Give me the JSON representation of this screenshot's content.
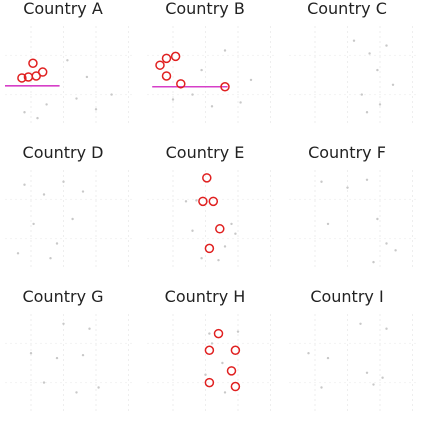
{
  "chart_data": [
    {
      "type": "scatter",
      "title": "Country A",
      "xlim": [
        0,
        10
      ],
      "ylim": [
        0,
        10
      ],
      "series": [
        {
          "color": "#c8c8c8",
          "x": [
            1.5,
            3.2,
            5.5,
            7.0,
            8.2,
            6.3,
            2.5,
            4.8
          ],
          "values": [
            1.2,
            2.0,
            2.6,
            1.5,
            3.0,
            4.8,
            0.6,
            6.5
          ]
        },
        {
          "color": "#e02020",
          "x": [
            2.15,
            1.3,
            1.8,
            2.4,
            2.9
          ],
          "values": [
            6.2,
            4.7,
            4.8,
            4.9,
            5.3
          ]
        }
      ],
      "hline": {
        "value": 3.9,
        "x": [
          0,
          4.2
        ],
        "color": "#d63fc8"
      }
    },
    {
      "type": "scatter",
      "title": "Country B",
      "xlim": [
        0,
        10
      ],
      "ylim": [
        0,
        10
      ],
      "series": [
        {
          "color": "#c8c8c8",
          "x": [
            2.0,
            3.5,
            5.0,
            7.2,
            8.0,
            4.2,
            6.0
          ],
          "values": [
            2.5,
            3.0,
            1.8,
            2.2,
            4.5,
            5.5,
            7.5
          ]
        },
        {
          "color": "#e02020",
          "x": [
            1.0,
            1.5,
            2.2,
            1.5,
            2.6,
            6.0
          ],
          "values": [
            6.0,
            6.7,
            6.9,
            4.9,
            4.1,
            3.8
          ]
        }
      ],
      "hline": {
        "value": 3.8,
        "x": [
          0.4,
          6.2
        ],
        "color": "#d63fc8"
      }
    },
    {
      "type": "scatter",
      "title": "Country C",
      "xlim": [
        0,
        10
      ],
      "ylim": [
        0,
        10
      ],
      "series": [
        {
          "color": "#c8c8c8",
          "x": [
            5.0,
            6.2,
            7.5,
            6.8,
            8.0,
            5.6,
            7.0,
            6.0
          ],
          "values": [
            8.5,
            7.2,
            8.0,
            5.5,
            4.0,
            3.0,
            2.0,
            1.2
          ]
        }
      ]
    },
    {
      "type": "scatter",
      "title": "Country D",
      "xlim": [
        0,
        10
      ],
      "ylim": [
        0,
        10
      ],
      "series": [
        {
          "color": "#c8c8c8",
          "x": [
            1.5,
            3.0,
            4.5,
            6.0,
            5.2,
            2.2,
            4.0,
            3.5,
            1.0
          ],
          "values": [
            8.5,
            7.5,
            8.8,
            7.8,
            5.0,
            4.5,
            2.5,
            1.0,
            1.5
          ]
        }
      ]
    },
    {
      "type": "scatter",
      "title": "Country E",
      "xlim": [
        0,
        10
      ],
      "ylim": [
        0,
        10
      ],
      "series": [
        {
          "color": "#c8c8c8",
          "x": [
            3.0,
            3.8,
            6.5,
            6.8,
            3.5,
            6.0,
            4.2,
            5.5
          ],
          "values": [
            6.8,
            6.9,
            4.5,
            3.5,
            3.8,
            2.2,
            1.0,
            0.8
          ]
        },
        {
          "color": "#e02020",
          "x": [
            4.6,
            4.3,
            5.1,
            5.6,
            4.8
          ],
          "values": [
            9.2,
            6.8,
            6.8,
            4.0,
            2.0
          ]
        }
      ]
    },
    {
      "type": "scatter",
      "title": "Country F",
      "xlim": [
        0,
        10
      ],
      "ylim": [
        0,
        10
      ],
      "series": [
        {
          "color": "#c8c8c8",
          "x": [
            2.5,
            4.5,
            6.0,
            3.0,
            6.8,
            7.5,
            8.2,
            6.5
          ],
          "values": [
            8.8,
            8.2,
            9.0,
            4.5,
            5.0,
            2.5,
            1.8,
            0.6
          ]
        }
      ]
    },
    {
      "type": "scatter",
      "title": "Country G",
      "xlim": [
        0,
        10
      ],
      "ylim": [
        0,
        10
      ],
      "series": [
        {
          "color": "#c8c8c8",
          "x": [
            4.5,
            6.5,
            2.0,
            4.0,
            6.0,
            3.0,
            5.5,
            7.2
          ],
          "values": [
            9.0,
            8.5,
            6.0,
            5.5,
            5.8,
            3.0,
            2.0,
            2.5
          ]
        }
      ]
    },
    {
      "type": "scatter",
      "title": "Country H",
      "xlim": [
        0,
        10
      ],
      "ylim": [
        0,
        10
      ],
      "series": [
        {
          "color": "#c8c8c8",
          "x": [
            4.8,
            5.0,
            7.0,
            5.8,
            4.5,
            6.0
          ],
          "values": [
            8.0,
            7.0,
            8.2,
            5.0,
            3.8,
            2.0
          ]
        },
        {
          "color": "#e02020",
          "x": [
            5.5,
            4.8,
            6.8,
            6.5,
            4.8,
            6.8
          ],
          "values": [
            8.0,
            6.3,
            6.3,
            4.2,
            3.0,
            2.6
          ]
        }
      ]
    },
    {
      "type": "scatter",
      "title": "Country I",
      "xlim": [
        0,
        10
      ],
      "ylim": [
        0,
        10
      ],
      "series": [
        {
          "color": "#c8c8c8",
          "x": [
            5.5,
            7.5,
            1.5,
            3.0,
            6.0,
            7.2,
            2.5,
            6.5
          ],
          "values": [
            9.0,
            8.5,
            6.0,
            5.5,
            4.0,
            3.5,
            2.5,
            2.8
          ]
        }
      ]
    }
  ]
}
